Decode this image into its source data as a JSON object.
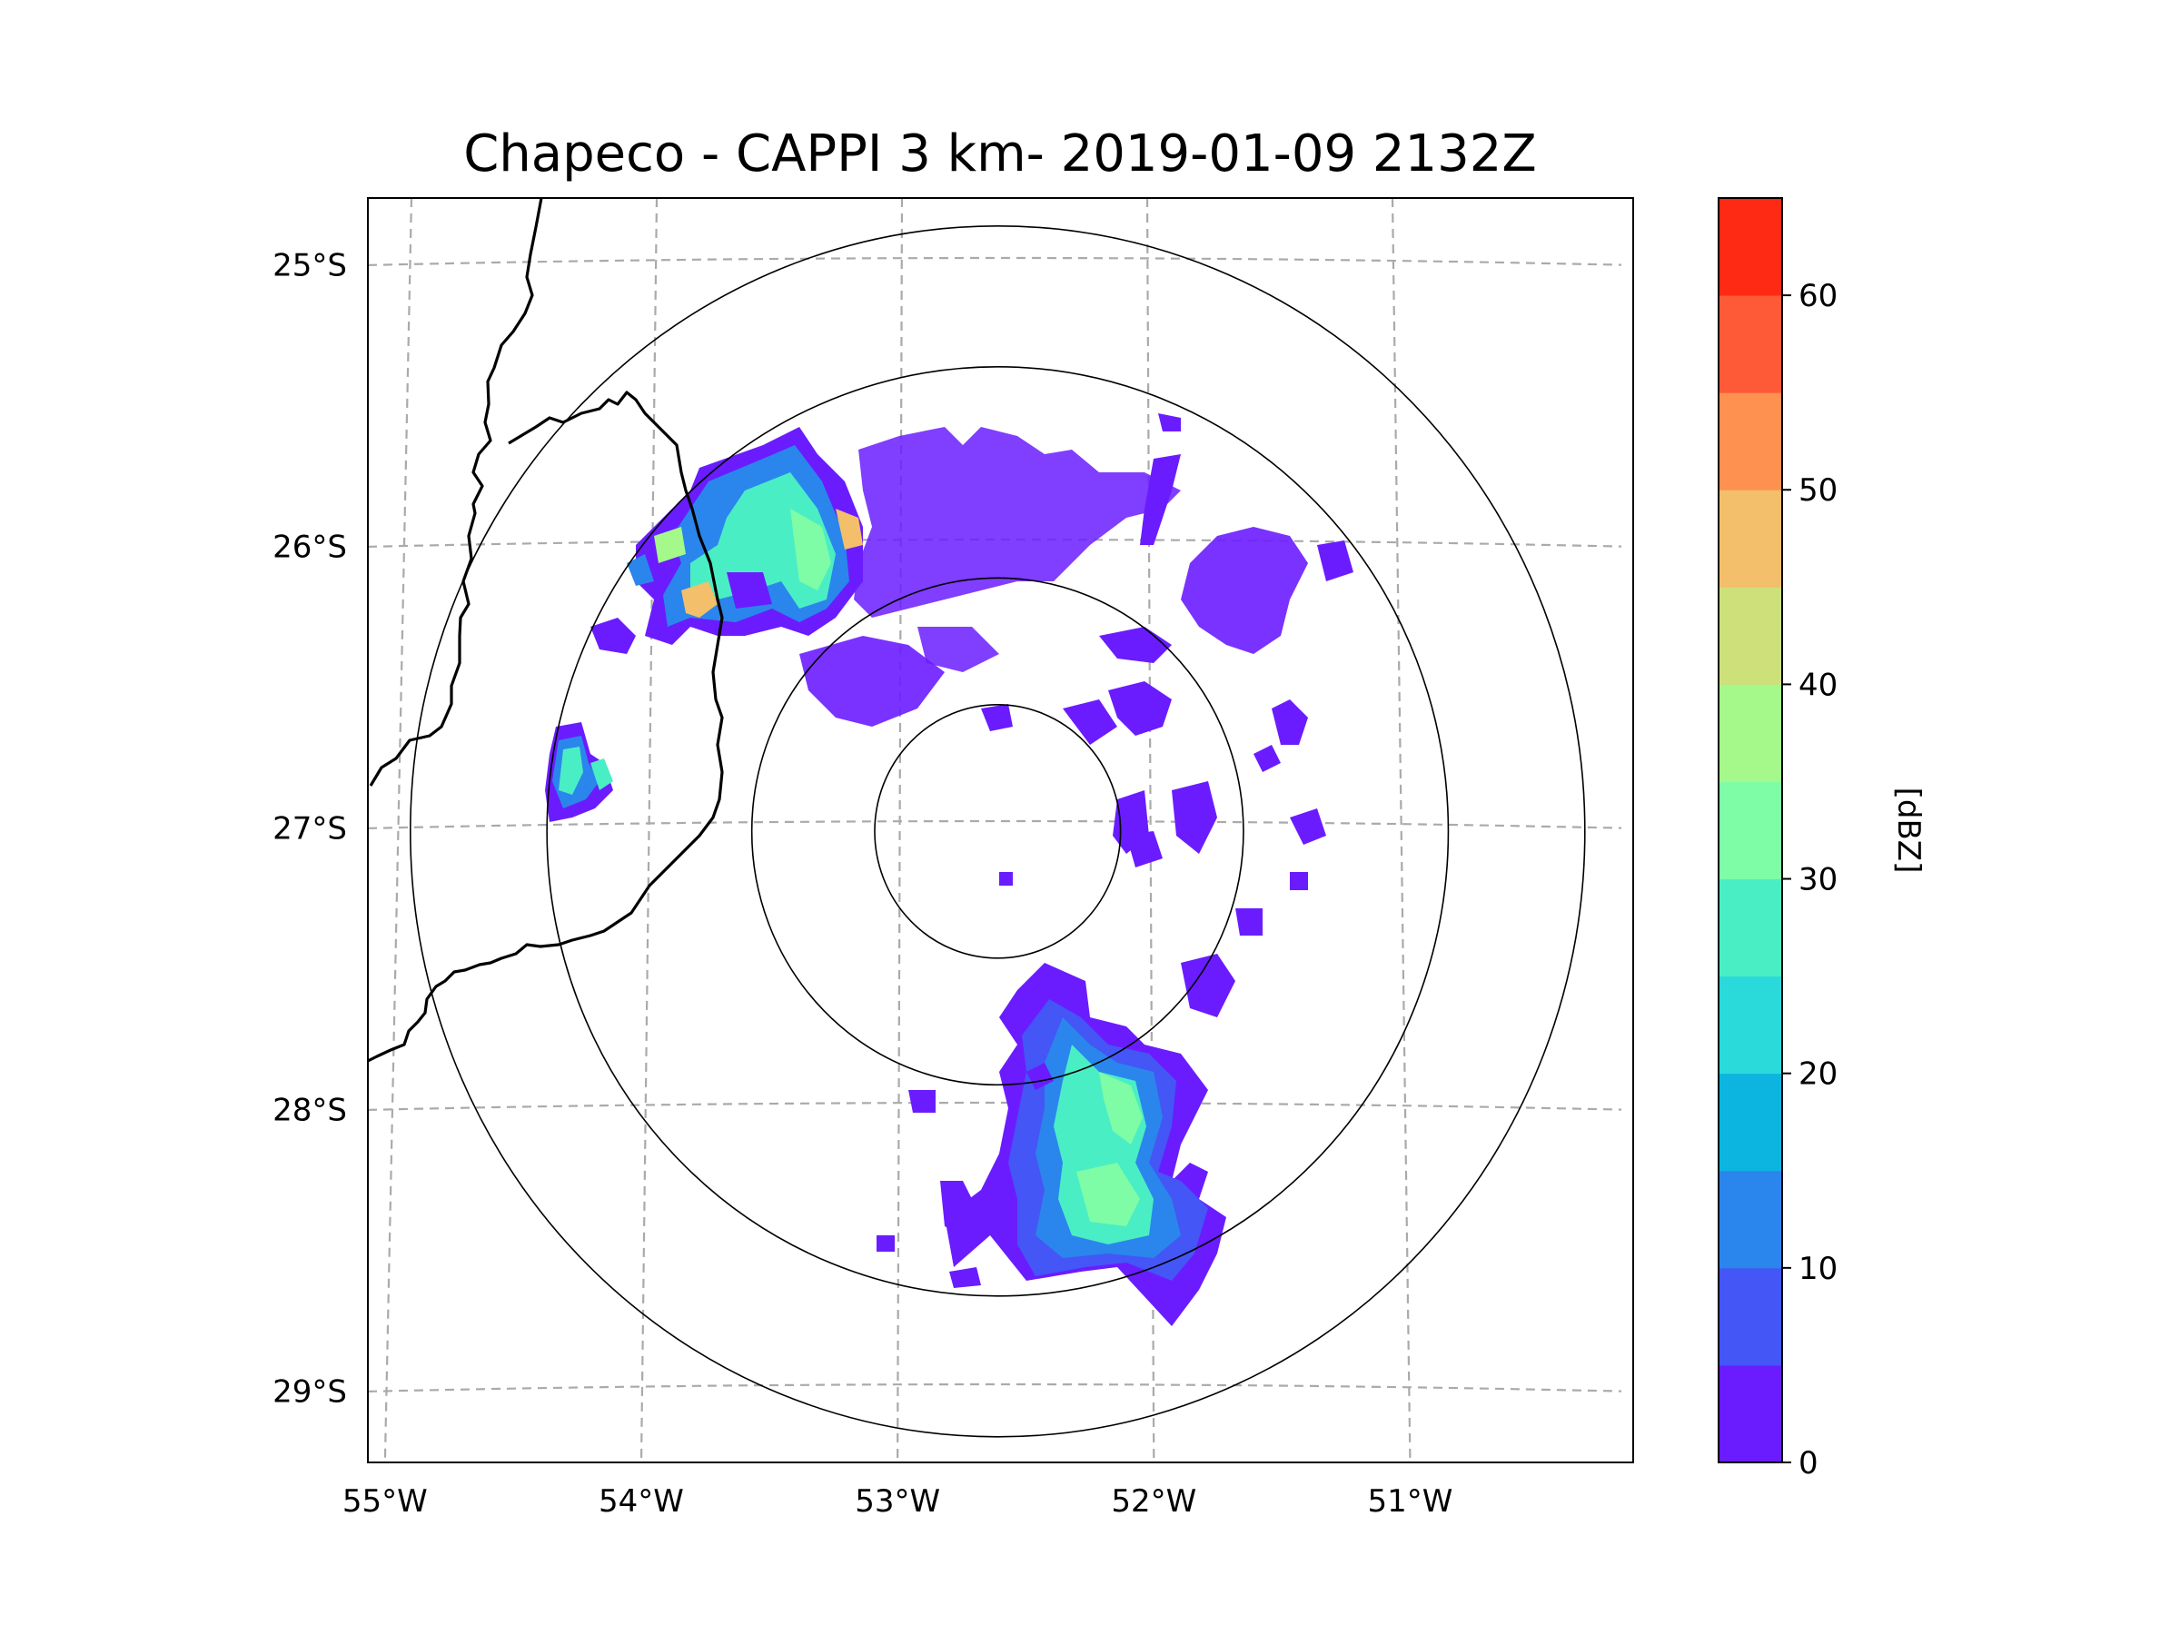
{
  "title": "Chapeco - CAPPI 3 km- 2019-01-09 2132Z",
  "map": {
    "lon_range": [
      -55.18,
      -50.05
    ],
    "lat_range": [
      -29.28,
      -24.78
    ],
    "lon_ticks": [
      {
        "value": -55,
        "label": "55°W"
      },
      {
        "value": -54,
        "label": "54°W"
      },
      {
        "value": -53,
        "label": "53°W"
      },
      {
        "value": -52,
        "label": "52°W"
      },
      {
        "value": -51,
        "label": "51°W"
      }
    ],
    "lat_ticks": [
      {
        "value": -25,
        "label": "25°S"
      },
      {
        "value": -26,
        "label": "26°S"
      },
      {
        "value": -27,
        "label": "27°S"
      },
      {
        "value": -28,
        "label": "28°S"
      },
      {
        "value": -29,
        "label": "29°S"
      }
    ],
    "radar_center": {
      "lon": -52.61,
      "lat": -27.03
    },
    "range_rings_deg": [
      0.45,
      0.9,
      1.65,
      2.15
    ]
  },
  "colorbar": {
    "label": "[dBZ]",
    "min": 0,
    "max": 65,
    "ticks": [
      {
        "value": 0,
        "label": "0"
      },
      {
        "value": 10,
        "label": "10"
      },
      {
        "value": 20,
        "label": "20"
      },
      {
        "value": 30,
        "label": "30"
      },
      {
        "value": 40,
        "label": "40"
      },
      {
        "value": 50,
        "label": "50"
      },
      {
        "value": 60,
        "label": "60"
      }
    ],
    "bins": [
      {
        "from": 0,
        "to": 5,
        "color": "#6a1cff"
      },
      {
        "from": 5,
        "to": 10,
        "color": "#4456f6"
      },
      {
        "from": 10,
        "to": 15,
        "color": "#2a86ec"
      },
      {
        "from": 15,
        "to": 20,
        "color": "#0cb5e0"
      },
      {
        "from": 20,
        "to": 25,
        "color": "#2ad9d9"
      },
      {
        "from": 25,
        "to": 30,
        "color": "#4aeec4"
      },
      {
        "from": 30,
        "to": 35,
        "color": "#7efca6"
      },
      {
        "from": 35,
        "to": 40,
        "color": "#a4f98a"
      },
      {
        "from": 40,
        "to": 45,
        "color": "#cde07a"
      },
      {
        "from": 45,
        "to": 50,
        "color": "#f3bf6a"
      },
      {
        "from": 50,
        "to": 55,
        "color": "#ff9150"
      },
      {
        "from": 55,
        "to": 60,
        "color": "#ff5a38"
      },
      {
        "from": 60,
        "to": 65,
        "color": "#ff2a14"
      }
    ]
  },
  "echo_areas": [
    {
      "name": "echo-southern-cluster",
      "lon": -52.15,
      "lat": -28.2,
      "dbz": 25
    },
    {
      "name": "echo-northwest-band",
      "lon": -53.55,
      "lat": -26.0,
      "dbz": 30
    },
    {
      "name": "echo-northern-scatter",
      "lon": -52.5,
      "lat": -26.1,
      "dbz": 3
    },
    {
      "name": "echo-northeast-patch",
      "lon": -51.78,
      "lat": -26.2,
      "dbz": 3
    },
    {
      "name": "echo-west-patch",
      "lon": -54.25,
      "lat": -26.85,
      "dbz": 22
    }
  ]
}
